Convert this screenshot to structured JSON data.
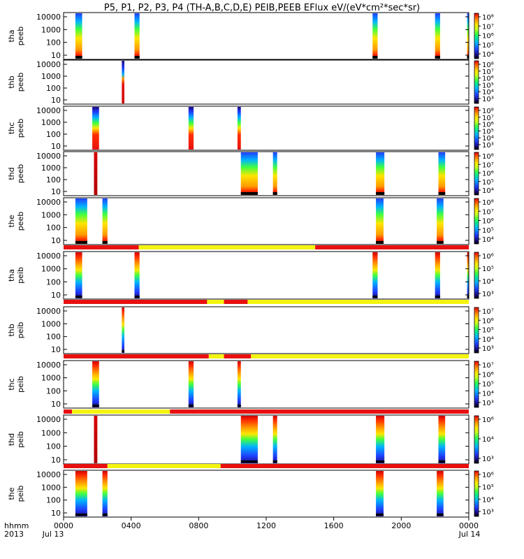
{
  "title": "P5, P1, P2, P3, P4 (TH-A,B,C,D,E) PEIB,PEEB EFlux eV/(eV*cm²*sec*sr)",
  "footer": {
    "row_label_line1": "hhmm",
    "row_label_line2": "2013",
    "time_ticks": [
      "0000",
      "0400",
      "0800",
      "1200",
      "1600",
      "2000",
      "0000"
    ],
    "date_labels": [
      "Jul 13",
      "Jul 14"
    ]
  },
  "colors": {
    "bar_red": "#e81010",
    "bar_yellow": "#f4f410",
    "spectro_palette": [
      "#000000",
      "#1a0a80",
      "#1f3fff",
      "#00b4ff",
      "#00e6a0",
      "#40ff40",
      "#c8ff20",
      "#ffe600",
      "#ff9a00",
      "#ff3000",
      "#d00000"
    ]
  },
  "chart_data": {
    "type": "heatmap",
    "x_unit": "hours since 2013-07-13 00:00 UT",
    "xlim": [
      0,
      24
    ],
    "y_scale": "log",
    "colorbar_scale": "log",
    "panels": [
      {
        "line1": "tha",
        "line2": "peeb",
        "ytick_labels": [
          "10000",
          "1000",
          "100",
          "10"
        ],
        "cb_labels": [
          "10⁸",
          "10⁷",
          "10⁶",
          "10⁵",
          "10⁴"
        ],
        "intervals": [
          {
            "start": 0.7,
            "end": 1.1,
            "profile": "e"
          },
          {
            "start": 4.2,
            "end": 4.5,
            "profile": "e"
          },
          {
            "start": 18.3,
            "end": 18.6,
            "profile": "e"
          },
          {
            "start": 22.0,
            "end": 22.3,
            "profile": "e"
          },
          {
            "start": 23.9,
            "end": 24.0,
            "profile": "e"
          }
        ]
      },
      {
        "line1": "thb",
        "line2": "peeb",
        "ytick_labels": [
          "10000",
          "1000",
          "100",
          "10"
        ],
        "cb_labels": [
          "10⁸",
          "10⁷",
          "10⁶",
          "10⁵",
          "10⁴",
          "10³"
        ],
        "intervals": [
          {
            "start": 3.45,
            "end": 3.6,
            "profile": "b"
          }
        ]
      },
      {
        "line1": "thc",
        "line2": "peeb",
        "ytick_labels": [
          "10000",
          "1000",
          "100",
          "10"
        ],
        "cb_labels": [
          "10⁸",
          "10⁷",
          "10⁶",
          "10⁵",
          "10⁴",
          "10³"
        ],
        "intervals": [
          {
            "start": 1.7,
            "end": 2.1,
            "profile": "c"
          },
          {
            "start": 7.4,
            "end": 7.7,
            "profile": "c"
          },
          {
            "start": 10.3,
            "end": 10.5,
            "profile": "c"
          }
        ]
      },
      {
        "line1": "thd",
        "line2": "peeb",
        "ytick_labels": [
          "10000",
          "1000",
          "100",
          "10"
        ],
        "cb_labels": [
          "10⁸",
          "10⁷",
          "10⁶",
          "10⁵",
          "10⁴"
        ],
        "intervals": [
          {
            "start": 1.8,
            "end": 2.0,
            "profile": "r"
          },
          {
            "start": 10.5,
            "end": 11.5,
            "profile": "e"
          },
          {
            "start": 12.4,
            "end": 12.65,
            "profile": "e"
          },
          {
            "start": 18.5,
            "end": 19.0,
            "profile": "e"
          },
          {
            "start": 22.2,
            "end": 22.6,
            "profile": "e"
          }
        ]
      },
      {
        "line1": "the",
        "line2": "peeb",
        "ytick_labels": [
          "10000",
          "1000",
          "100",
          "10"
        ],
        "cb_labels": [
          "10⁸",
          "10⁷",
          "10⁶",
          "10⁵",
          "10⁴"
        ],
        "intervals": [
          {
            "start": 0.7,
            "end": 1.4,
            "profile": "e"
          },
          {
            "start": 2.3,
            "end": 2.6,
            "profile": "e"
          },
          {
            "start": 18.5,
            "end": 18.95,
            "profile": "e"
          },
          {
            "start": 22.1,
            "end": 22.5,
            "profile": "e"
          }
        ]
      },
      {
        "line1": "tha",
        "line2": "peib",
        "ytick_labels": [
          "10000",
          "1000",
          "100",
          "10"
        ],
        "cb_labels": [
          "10⁶",
          "10⁵",
          "10⁴",
          "10³"
        ],
        "mode_bar": [
          {
            "start": 0,
            "end": 4.45,
            "mode": "red"
          },
          {
            "start": 4.45,
            "end": 14.9,
            "mode": "yellow"
          },
          {
            "start": 14.9,
            "end": 24,
            "mode": "red"
          }
        ],
        "intervals": [
          {
            "start": 0.7,
            "end": 1.1,
            "profile": "i"
          },
          {
            "start": 4.2,
            "end": 4.5,
            "profile": "i"
          },
          {
            "start": 18.3,
            "end": 18.6,
            "profile": "i"
          },
          {
            "start": 22.0,
            "end": 22.3,
            "profile": "i"
          },
          {
            "start": 23.9,
            "end": 24.0,
            "profile": "i"
          }
        ]
      },
      {
        "line1": "thb",
        "line2": "peib",
        "ytick_labels": [
          "10000",
          "1000",
          "100",
          "10"
        ],
        "cb_labels": [
          "10⁷",
          "10⁶",
          "10⁵",
          "10⁴",
          "10³"
        ],
        "mode_bar": [
          {
            "start": 0,
            "end": 8.5,
            "mode": "red"
          },
          {
            "start": 8.5,
            "end": 9.5,
            "mode": "yellow"
          },
          {
            "start": 9.5,
            "end": 10.9,
            "mode": "red"
          },
          {
            "start": 10.9,
            "end": 24,
            "mode": "yellow"
          }
        ],
        "intervals": [
          {
            "start": 3.45,
            "end": 3.6,
            "profile": "i"
          }
        ]
      },
      {
        "line1": "thc",
        "line2": "peib",
        "ytick_labels": [
          "10000",
          "1000",
          "100",
          "10"
        ],
        "cb_labels": [
          "10⁷",
          "10⁶",
          "10⁵",
          "10⁴",
          "10³"
        ],
        "mode_bar": [
          {
            "start": 0,
            "end": 8.6,
            "mode": "red"
          },
          {
            "start": 8.6,
            "end": 9.5,
            "mode": "yellow"
          },
          {
            "start": 9.5,
            "end": 11.1,
            "mode": "red"
          },
          {
            "start": 11.1,
            "end": 24,
            "mode": "yellow"
          }
        ],
        "intervals": [
          {
            "start": 1.7,
            "end": 2.1,
            "profile": "i"
          },
          {
            "start": 7.4,
            "end": 7.7,
            "profile": "i"
          },
          {
            "start": 10.3,
            "end": 10.5,
            "profile": "i"
          }
        ]
      },
      {
        "line1": "thd",
        "line2": "peib",
        "ytick_labels": [
          "10000",
          "1000",
          "100",
          "10"
        ],
        "cb_labels": [
          "10⁶",
          "10⁴",
          "10³"
        ],
        "mode_bar": [
          {
            "start": 0,
            "end": 0.5,
            "mode": "red"
          },
          {
            "start": 0.5,
            "end": 6.3,
            "mode": "yellow"
          },
          {
            "start": 6.3,
            "end": 24,
            "mode": "red"
          }
        ],
        "intervals": [
          {
            "start": 1.8,
            "end": 2.0,
            "profile": "r"
          },
          {
            "start": 10.5,
            "end": 11.5,
            "profile": "i"
          },
          {
            "start": 12.4,
            "end": 12.65,
            "profile": "i"
          },
          {
            "start": 18.5,
            "end": 19.0,
            "profile": "i"
          },
          {
            "start": 22.2,
            "end": 22.6,
            "profile": "i"
          }
        ]
      },
      {
        "line1": "the",
        "line2": "peib",
        "ytick_labels": [
          "10000",
          "1000",
          "100",
          "10"
        ],
        "cb_labels": [
          "10⁶",
          "10⁵",
          "10⁴",
          "10³"
        ],
        "mode_bar": [
          {
            "start": 0,
            "end": 2.6,
            "mode": "red"
          },
          {
            "start": 2.6,
            "end": 9.3,
            "mode": "yellow"
          },
          {
            "start": 9.3,
            "end": 24,
            "mode": "red"
          }
        ],
        "intervals": [
          {
            "start": 0.7,
            "end": 1.4,
            "profile": "i"
          },
          {
            "start": 2.3,
            "end": 2.6,
            "profile": "i"
          },
          {
            "start": 18.5,
            "end": 18.95,
            "profile": "i"
          },
          {
            "start": 22.1,
            "end": 22.5,
            "profile": "i"
          }
        ]
      }
    ]
  }
}
